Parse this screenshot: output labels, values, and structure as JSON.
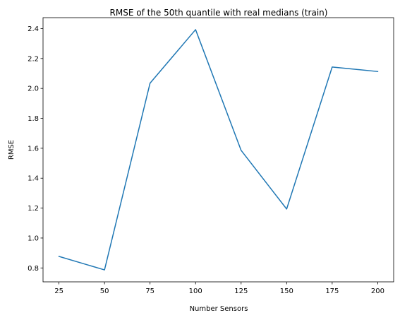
{
  "chart_data": {
    "type": "line",
    "title": "RMSE of the 50th quantile with real medians (train)",
    "xlabel": "Number Sensors",
    "ylabel": "RMSE",
    "x": [
      25,
      50,
      75,
      100,
      125,
      150,
      175,
      200
    ],
    "series": [
      {
        "values": [
          0.877,
          0.787,
          2.035,
          2.393,
          1.586,
          1.194,
          2.143,
          2.113
        ],
        "color": "#1f77b4"
      }
    ],
    "xlim": [
      16.25,
      208.75
    ],
    "ylim": [
      0.707,
      2.473
    ],
    "xticks": [
      25,
      50,
      75,
      100,
      125,
      150,
      175,
      200
    ],
    "yticks": [
      0.8,
      1.0,
      1.2,
      1.4,
      1.6,
      1.8,
      2.0,
      2.2,
      2.4
    ],
    "ytick_labels": [
      "0.8",
      "1.0",
      "1.2",
      "1.4",
      "1.6",
      "1.8",
      "2.0",
      "2.2",
      "2.4"
    ],
    "grid": false,
    "legend": "none"
  }
}
